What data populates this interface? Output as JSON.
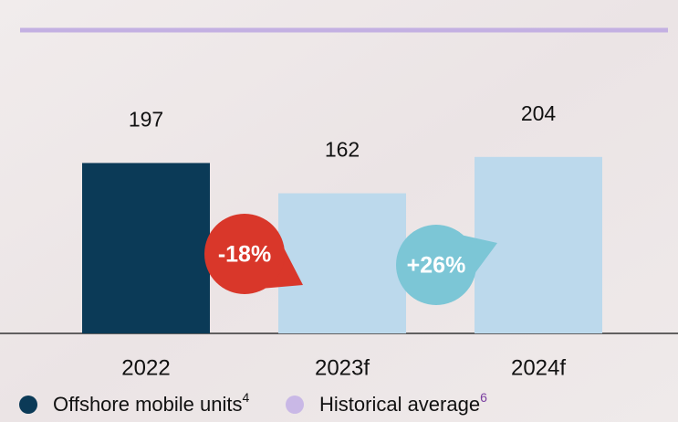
{
  "chart_data": {
    "type": "bar",
    "categories": [
      "2022",
      "2023f",
      "2024f"
    ],
    "values": [
      197,
      162,
      204
    ],
    "colors": [
      "#0b3a57",
      "#bcd9ec",
      "#bcd9ec"
    ],
    "annotations": [
      {
        "text": "-18%",
        "color": "#d9372a"
      },
      {
        "text": "+26%",
        "color": "#7cc6d6"
      }
    ],
    "legend": [
      {
        "name": "Offshore mobile units",
        "note": "4",
        "color": "#0b3a57"
      },
      {
        "name": "Historical average",
        "note": "6",
        "color": "#c9b8e6"
      }
    ]
  }
}
